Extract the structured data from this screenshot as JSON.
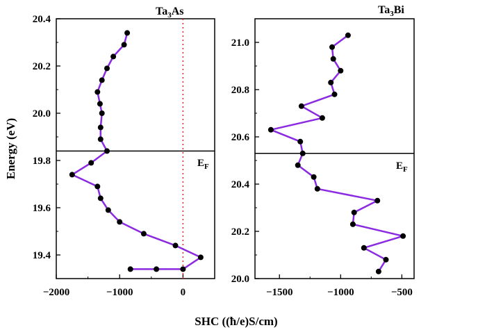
{
  "chart_data": [
    {
      "type": "line",
      "title": "Ta3As",
      "title_parts": [
        "Ta",
        "3",
        "As"
      ],
      "xlabel": "SHC ((ħ/e)S/cm)",
      "ylabel": "Energy (eV)",
      "xlim": [
        -2000,
        500
      ],
      "ylim": [
        19.3,
        20.4
      ],
      "xticks": [
        "-2000",
        "-1000",
        "0"
      ],
      "xtick_values": [
        -2000,
        -1000,
        0
      ],
      "yticks": [
        "19.4",
        "19.6",
        "19.8",
        "20.0",
        "20.2",
        "20.4"
      ],
      "ytick_values": [
        19.4,
        19.6,
        19.8,
        20.0,
        20.2,
        20.4
      ],
      "fermi_level": 19.84,
      "fermi_label": [
        "E",
        "F"
      ],
      "zero_line": 0,
      "line_color": "#8a2be2",
      "marker_color": "#000000",
      "x": [
        -880,
        -930,
        -1100,
        -1200,
        -1280,
        -1350,
        -1310,
        -1280,
        -1300,
        -1300,
        -1200,
        -1450,
        -1750,
        -1350,
        -1300,
        -1180,
        -1000,
        -620,
        -120,
        280,
        0,
        -420,
        -830
      ],
      "y": [
        20.34,
        20.29,
        20.24,
        20.19,
        20.14,
        20.09,
        20.04,
        20.0,
        19.94,
        19.89,
        19.84,
        19.79,
        19.74,
        19.69,
        19.64,
        19.59,
        19.54,
        19.49,
        19.44,
        19.39,
        19.34,
        19.34,
        19.34
      ]
    },
    {
      "type": "line",
      "title": "Ta3Bi",
      "title_parts": [
        "Ta",
        "3",
        "Bi"
      ],
      "xlabel": "SHC ((ħ/e)S/cm)",
      "ylabel": "",
      "xlim": [
        -1700,
        -400
      ],
      "ylim": [
        20.0,
        21.1
      ],
      "xticks": [
        "-1500",
        "-1000",
        "-500"
      ],
      "xtick_values": [
        -1500,
        -1000,
        -500
      ],
      "yticks": [
        "20.0",
        "20.2",
        "20.4",
        "20.6",
        "20.8",
        "21.0"
      ],
      "ytick_values": [
        20.0,
        20.2,
        20.4,
        20.6,
        20.8,
        21.0
      ],
      "fermi_level": 20.53,
      "fermi_label": [
        "E",
        "F"
      ],
      "line_color": "#8a2be2",
      "marker_color": "#000000",
      "x": [
        -940,
        -1070,
        -1060,
        -1000,
        -1080,
        -1050,
        -1320,
        -1150,
        -1570,
        -1330,
        -1310,
        -1350,
        -1220,
        -1190,
        -700,
        -890,
        -900,
        -490,
        -810,
        -630,
        -690
      ],
      "y": [
        21.03,
        20.98,
        20.93,
        20.88,
        20.83,
        20.78,
        20.73,
        20.68,
        20.63,
        20.58,
        20.53,
        20.48,
        20.43,
        20.38,
        20.33,
        20.28,
        20.23,
        20.18,
        20.13,
        20.08,
        20.03
      ]
    }
  ]
}
